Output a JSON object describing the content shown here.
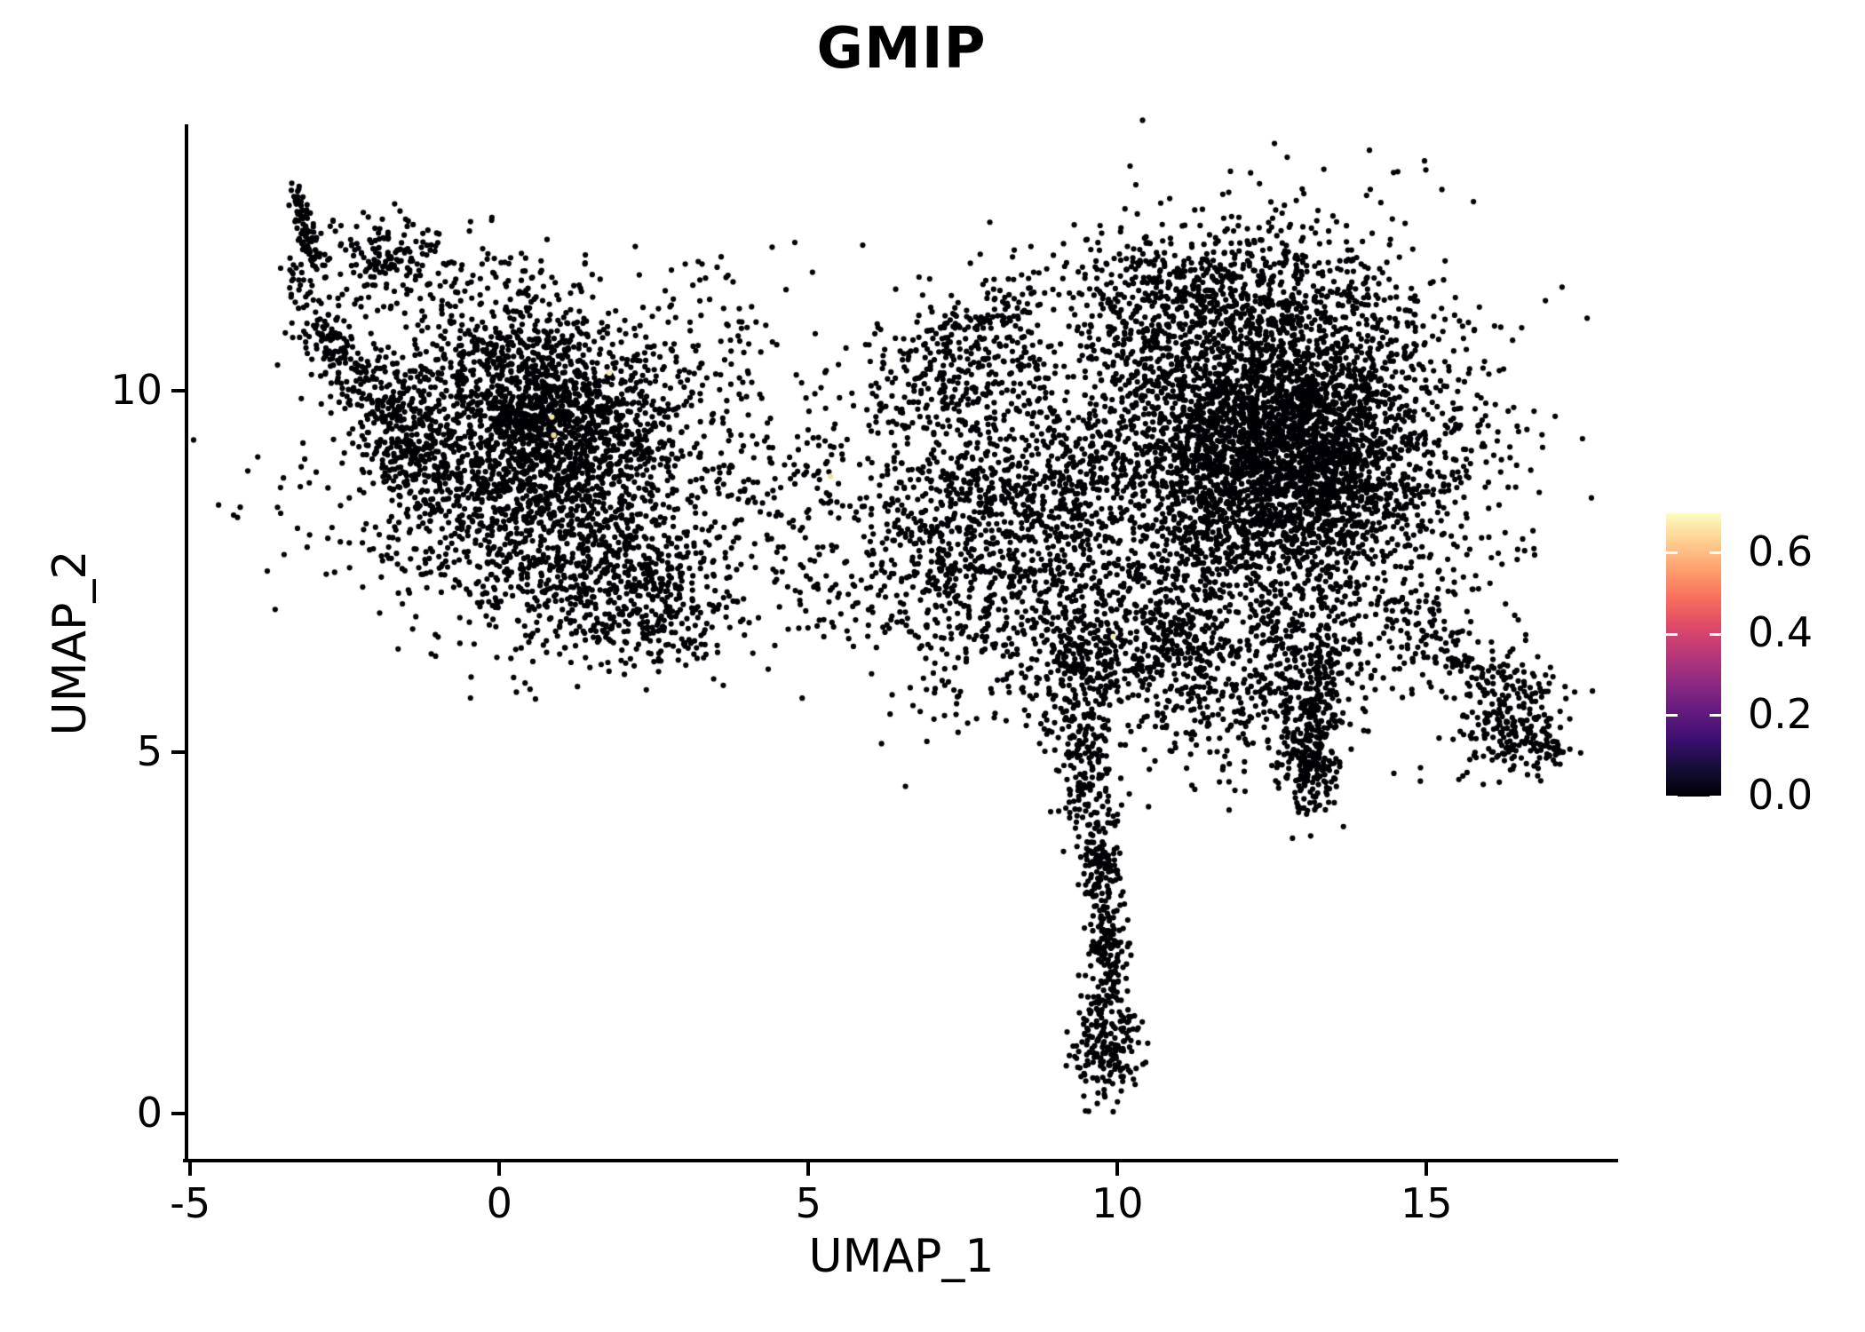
{
  "chart_data": {
    "type": "scatter",
    "title": "GMIP",
    "xlabel": "UMAP_1",
    "ylabel": "UMAP_2",
    "x_ticks": [
      -5,
      0,
      5,
      10,
      15
    ],
    "y_ticks": [
      0,
      5,
      10
    ],
    "x_range": [
      -5.06,
      18.07
    ],
    "y_range": [
      -0.651,
      13.666
    ],
    "grid": false,
    "background_color": "#ffffff",
    "point_color": "#010005",
    "point_radius": 3.1,
    "seed": 42,
    "colorbar": {
      "position": "right",
      "ticks": [
        0.0,
        0.2,
        0.4,
        0.6
      ],
      "range": [
        0,
        0.698
      ],
      "colormap": "magma",
      "stops": [
        [
          0.0,
          "#000004"
        ],
        [
          0.1,
          "#140e36"
        ],
        [
          0.2,
          "#3b0f70"
        ],
        [
          0.3,
          "#641a80"
        ],
        [
          0.4,
          "#8c2981"
        ],
        [
          0.5,
          "#b73779"
        ],
        [
          0.6,
          "#de4968"
        ],
        [
          0.7,
          "#f76f5c"
        ],
        [
          0.8,
          "#fe9f6d"
        ],
        [
          0.9,
          "#fece91"
        ],
        [
          1.0,
          "#fcfdbf"
        ]
      ]
    },
    "clusters": [
      {
        "kind": "line",
        "x1": -3.35,
        "y1": 12.78,
        "x2": -2.92,
        "y2": 11.7,
        "jitter": 0.08,
        "n": 90
      },
      {
        "kind": "line",
        "x1": -3.45,
        "y1": 11.8,
        "x2": -2.55,
        "y2": 10.45,
        "jitter": 0.14,
        "n": 55
      },
      {
        "kind": "gauss",
        "cx": -1.95,
        "cy": 11.85,
        "sx": 0.45,
        "sy": 0.3,
        "n": 150
      },
      {
        "kind": "gauss",
        "cx": -0.35,
        "cy": 11.45,
        "sx": 0.85,
        "sy": 0.42,
        "n": 100
      },
      {
        "kind": "line",
        "x1": -3.0,
        "y1": 10.9,
        "x2": -1.2,
        "y2": 9.3,
        "jitter": 0.25,
        "n": 230
      },
      {
        "kind": "line",
        "x1": -2.2,
        "y1": 9.6,
        "x2": -1.0,
        "y2": 8.4,
        "jitter": 0.3,
        "n": 120
      },
      {
        "kind": "gauss",
        "cx": 0.55,
        "cy": 8.9,
        "sx": 1.5,
        "sy": 1.05,
        "n": 1500
      },
      {
        "kind": "gauss",
        "cx": 0.85,
        "cy": 9.5,
        "sx": 0.95,
        "sy": 0.6,
        "n": 900
      },
      {
        "kind": "gauss",
        "cx": 0.2,
        "cy": 10.3,
        "sx": 1.1,
        "sy": 0.4,
        "n": 300
      },
      {
        "kind": "gauss",
        "cx": 1.55,
        "cy": 7.45,
        "sx": 1.0,
        "sy": 0.6,
        "n": 520
      },
      {
        "kind": "gauss",
        "cx": 2.75,
        "cy": 6.85,
        "sx": 0.55,
        "sy": 0.35,
        "n": 130
      },
      {
        "kind": "gauss",
        "cx": 3.3,
        "cy": 11.1,
        "sx": 0.9,
        "sy": 0.5,
        "n": 55
      },
      {
        "kind": "gauss",
        "cx": 5.0,
        "cy": 8.7,
        "sx": 1.0,
        "sy": 0.85,
        "n": 200
      },
      {
        "kind": "gauss",
        "cx": 5.6,
        "cy": 7.3,
        "sx": 0.8,
        "sy": 0.4,
        "n": 70
      },
      {
        "kind": "gauss",
        "cx": 7.55,
        "cy": 8.1,
        "sx": 0.8,
        "sy": 1.15,
        "n": 780
      },
      {
        "kind": "gauss",
        "cx": 7.5,
        "cy": 10.4,
        "sx": 0.85,
        "sy": 0.5,
        "n": 180
      },
      {
        "kind": "line",
        "x1": 6.4,
        "y1": 10.1,
        "x2": 8.7,
        "y2": 11.4,
        "jitter": 0.3,
        "n": 130
      },
      {
        "kind": "gauss",
        "cx": 9.2,
        "cy": 8.5,
        "sx": 0.65,
        "sy": 1.0,
        "n": 380
      },
      {
        "kind": "gauss",
        "cx": 12.45,
        "cy": 9.15,
        "sx": 1.65,
        "sy": 1.4,
        "n": 3300
      },
      {
        "kind": "gauss",
        "cx": 12.7,
        "cy": 9.2,
        "sx": 1.05,
        "sy": 0.9,
        "n": 1600
      },
      {
        "kind": "gauss",
        "cx": 12.0,
        "cy": 11.4,
        "sx": 1.05,
        "sy": 0.45,
        "n": 330
      },
      {
        "kind": "gauss",
        "cx": 10.4,
        "cy": 11.1,
        "sx": 0.6,
        "sy": 0.55,
        "n": 170
      },
      {
        "kind": "gauss",
        "cx": 12.3,
        "cy": 5.9,
        "sx": 0.85,
        "sy": 0.7,
        "n": 330
      },
      {
        "kind": "gauss",
        "cx": 10.8,
        "cy": 6.6,
        "sx": 0.55,
        "sy": 0.7,
        "n": 250
      },
      {
        "kind": "line",
        "x1": 13.35,
        "y1": 6.4,
        "x2": 13.05,
        "y2": 4.45,
        "jitter": 0.2,
        "n": 210
      },
      {
        "kind": "gauss",
        "cx": 13.15,
        "cy": 4.85,
        "sx": 0.28,
        "sy": 0.35,
        "n": 90
      },
      {
        "kind": "line",
        "x1": 14.45,
        "y1": 7.0,
        "x2": 16.15,
        "y2": 5.75,
        "jitter": 0.33,
        "n": 150
      },
      {
        "kind": "gauss",
        "cx": 16.4,
        "cy": 5.45,
        "sx": 0.42,
        "sy": 0.42,
        "n": 210
      },
      {
        "kind": "line",
        "x1": 16.75,
        "y1": 5.25,
        "x2": 17.1,
        "y2": 4.95,
        "jitter": 0.12,
        "n": 35
      },
      {
        "kind": "gauss",
        "cx": 9.45,
        "cy": 6.35,
        "sx": 0.75,
        "sy": 0.55,
        "n": 230
      },
      {
        "kind": "line",
        "x1": 9.3,
        "y1": 6.6,
        "x2": 9.7,
        "y2": 3.9,
        "jitter": 0.3,
        "n": 300
      },
      {
        "kind": "line",
        "x1": 9.68,
        "y1": 3.8,
        "x2": 9.88,
        "y2": 1.6,
        "jitter": 0.16,
        "n": 250
      },
      {
        "kind": "gauss",
        "cx": 9.82,
        "cy": 1.0,
        "sx": 0.28,
        "sy": 0.42,
        "n": 190
      }
    ],
    "outlier_points": [
      [
        4.35,
        6.15
      ],
      [
        5.25,
        6.6
      ],
      [
        6.1,
        6.45
      ],
      [
        4.9,
        5.75
      ],
      [
        2.2,
        12.0
      ],
      [
        3.7,
        11.6
      ],
      [
        8.6,
        12.0
      ],
      [
        9.3,
        12.3
      ],
      [
        10.7,
        12.6
      ],
      [
        11.8,
        12.75
      ],
      [
        15.3,
        11.8
      ],
      [
        16.1,
        10.9
      ],
      [
        6.9,
        6.3
      ],
      [
        3.2,
        6.3
      ],
      [
        14.9,
        4.6
      ],
      [
        15.7,
        4.9
      ]
    ],
    "highlight_points": [
      [
        1.78,
        10.25,
        "#f3edb2"
      ],
      [
        0.85,
        9.64,
        "#f0e6a6"
      ],
      [
        0.88,
        9.39,
        "#ead998"
      ],
      [
        9.93,
        6.6,
        "#f5f0bc"
      ],
      [
        5.36,
        8.82,
        "#eee3a2"
      ]
    ]
  }
}
